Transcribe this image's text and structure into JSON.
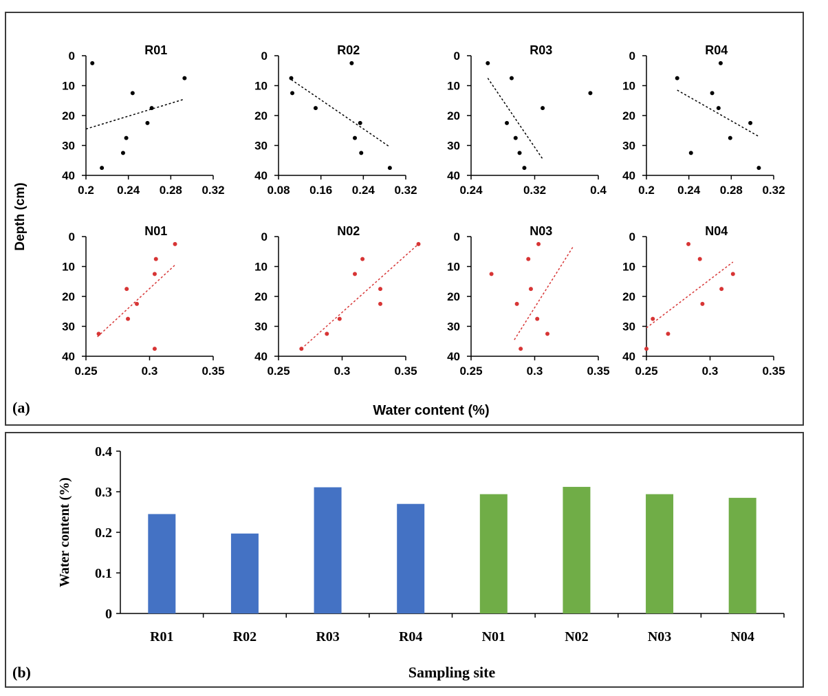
{
  "panel_a": {
    "label": "(a)",
    "ylabel": "Depth (cm)",
    "xlabel": "Water content (%)"
  },
  "panel_b": {
    "label": "(b)",
    "ylabel": "Water content (%)",
    "xlabel": "Sampling site"
  },
  "colors": {
    "r_points": "#000000",
    "n_points": "#d73535",
    "r_bar": "#4472c4",
    "n_bar": "#70ad47",
    "frame": "#3c3c3c"
  },
  "chart_data": [
    {
      "id": "R01",
      "type": "scatter",
      "title": "R01",
      "xlim": [
        0.2,
        0.32
      ],
      "xticks": [
        0.2,
        0.24,
        0.28,
        0.32
      ],
      "xtick_labels": [
        "0.2",
        "0.24",
        "0.28",
        "0.32"
      ],
      "ylim": [
        0,
        40
      ],
      "yticks": [
        0,
        10,
        20,
        30,
        40
      ],
      "y_inverted": true,
      "points": [
        [
          0.206,
          2.5
        ],
        [
          0.293,
          7.5
        ],
        [
          0.244,
          12.5
        ],
        [
          0.262,
          17.5
        ],
        [
          0.258,
          22.5
        ],
        [
          0.238,
          27.5
        ],
        [
          0.235,
          32.5
        ],
        [
          0.215,
          37.5
        ]
      ],
      "trend": [
        [
          0.2,
          24.5
        ],
        [
          0.293,
          14.5
        ]
      ],
      "color": "#000000"
    },
    {
      "id": "R02",
      "type": "scatter",
      "title": "R02",
      "xlim": [
        0.08,
        0.32
      ],
      "xticks": [
        0.08,
        0.16,
        0.24,
        0.32
      ],
      "xtick_labels": [
        "0.08",
        "0.16",
        "0.24",
        "0.32"
      ],
      "ylim": [
        0,
        40
      ],
      "yticks": [
        0,
        10,
        20,
        30,
        40
      ],
      "y_inverted": true,
      "points": [
        [
          0.218,
          2.5
        ],
        [
          0.104,
          7.5
        ],
        [
          0.106,
          12.5
        ],
        [
          0.15,
          17.5
        ],
        [
          0.234,
          22.5
        ],
        [
          0.224,
          27.5
        ],
        [
          0.236,
          32.5
        ],
        [
          0.29,
          37.5
        ]
      ],
      "trend": [
        [
          0.104,
          8.0
        ],
        [
          0.29,
          30.5
        ]
      ],
      "color": "#000000"
    },
    {
      "id": "R03",
      "type": "scatter",
      "title": "R03",
      "xlim": [
        0.24,
        0.4
      ],
      "xticks": [
        0.24,
        0.32,
        0.4
      ],
      "xtick_labels": [
        "0.24",
        "0.32",
        "0.4"
      ],
      "ylim": [
        0,
        40
      ],
      "yticks": [
        0,
        10,
        20,
        30,
        40
      ],
      "y_inverted": true,
      "points": [
        [
          0.261,
          2.5
        ],
        [
          0.291,
          7.5
        ],
        [
          0.39,
          12.5
        ],
        [
          0.33,
          17.5
        ],
        [
          0.285,
          22.5
        ],
        [
          0.296,
          27.5
        ],
        [
          0.301,
          32.5
        ],
        [
          0.307,
          37.5
        ]
      ],
      "trend": [
        [
          0.261,
          7.5
        ],
        [
          0.33,
          34.5
        ]
      ],
      "color": "#000000"
    },
    {
      "id": "R04",
      "type": "scatter",
      "title": "R04",
      "xlim": [
        0.2,
        0.32
      ],
      "xticks": [
        0.2,
        0.24,
        0.28,
        0.32
      ],
      "xtick_labels": [
        "0.2",
        "0.24",
        "0.28",
        "0.32"
      ],
      "ylim": [
        0,
        40
      ],
      "yticks": [
        0,
        10,
        20,
        30,
        40
      ],
      "y_inverted": true,
      "points": [
        [
          0.27,
          2.5
        ],
        [
          0.229,
          7.5
        ],
        [
          0.262,
          12.5
        ],
        [
          0.268,
          17.5
        ],
        [
          0.298,
          22.5
        ],
        [
          0.279,
          27.5
        ],
        [
          0.242,
          32.5
        ],
        [
          0.306,
          37.5
        ]
      ],
      "trend": [
        [
          0.229,
          11.5
        ],
        [
          0.306,
          27.0
        ]
      ],
      "color": "#000000"
    },
    {
      "id": "N01",
      "type": "scatter",
      "title": "N01",
      "xlim": [
        0.25,
        0.35
      ],
      "xticks": [
        0.25,
        0.3,
        0.35
      ],
      "xtick_labels": [
        "0.25",
        "0.3",
        "0.35"
      ],
      "ylim": [
        0,
        40
      ],
      "yticks": [
        0,
        10,
        20,
        30,
        40
      ],
      "y_inverted": true,
      "points": [
        [
          0.32,
          2.5
        ],
        [
          0.305,
          7.5
        ],
        [
          0.304,
          12.5
        ],
        [
          0.282,
          17.5
        ],
        [
          0.29,
          22.5
        ],
        [
          0.283,
          27.5
        ],
        [
          0.26,
          32.5
        ],
        [
          0.304,
          37.5
        ]
      ],
      "trend": [
        [
          0.259,
          33.5
        ],
        [
          0.32,
          9.5
        ]
      ],
      "color": "#d73535"
    },
    {
      "id": "N02",
      "type": "scatter",
      "title": "N02",
      "xlim": [
        0.25,
        0.35
      ],
      "xticks": [
        0.25,
        0.3,
        0.35
      ],
      "xtick_labels": [
        "0.25",
        "0.3",
        "0.35"
      ],
      "ylim": [
        0,
        40
      ],
      "yticks": [
        0,
        10,
        20,
        30,
        40
      ],
      "y_inverted": true,
      "points": [
        [
          0.36,
          2.5
        ],
        [
          0.316,
          7.5
        ],
        [
          0.31,
          12.5
        ],
        [
          0.33,
          17.5
        ],
        [
          0.33,
          22.5
        ],
        [
          0.298,
          27.5
        ],
        [
          0.288,
          32.5
        ],
        [
          0.268,
          37.5
        ]
      ],
      "trend": [
        [
          0.268,
          37.5
        ],
        [
          0.36,
          2.5
        ]
      ],
      "color": "#d73535"
    },
    {
      "id": "N03",
      "type": "scatter",
      "title": "N03",
      "xlim": [
        0.25,
        0.35
      ],
      "xticks": [
        0.25,
        0.3,
        0.35
      ],
      "xtick_labels": [
        "0.25",
        "0.3",
        "0.35"
      ],
      "ylim": [
        0,
        40
      ],
      "yticks": [
        0,
        10,
        20,
        30,
        40
      ],
      "y_inverted": true,
      "points": [
        [
          0.303,
          2.5
        ],
        [
          0.295,
          7.5
        ],
        [
          0.266,
          12.5
        ],
        [
          0.297,
          17.5
        ],
        [
          0.286,
          22.5
        ],
        [
          0.302,
          27.5
        ],
        [
          0.31,
          32.5
        ],
        [
          0.289,
          37.5
        ]
      ],
      "trend": [
        [
          0.284,
          34.5
        ],
        [
          0.33,
          3.5
        ]
      ],
      "color": "#d73535"
    },
    {
      "id": "N04",
      "type": "scatter",
      "title": "N04",
      "xlim": [
        0.25,
        0.35
      ],
      "xticks": [
        0.25,
        0.3,
        0.35
      ],
      "xtick_labels": [
        "0.25",
        "0.3",
        "0.35"
      ],
      "ylim": [
        0,
        40
      ],
      "yticks": [
        0,
        10,
        20,
        30,
        40
      ],
      "y_inverted": true,
      "points": [
        [
          0.283,
          2.5
        ],
        [
          0.292,
          7.5
        ],
        [
          0.318,
          12.5
        ],
        [
          0.309,
          17.5
        ],
        [
          0.294,
          22.5
        ],
        [
          0.255,
          27.5
        ],
        [
          0.267,
          32.5
        ],
        [
          0.25,
          37.5
        ]
      ],
      "trend": [
        [
          0.25,
          30.5
        ],
        [
          0.318,
          8.5
        ]
      ],
      "color": "#d73535"
    },
    {
      "id": "bars",
      "type": "bar",
      "title": "",
      "xlabel": "Sampling site",
      "ylabel": "Water content (%)",
      "categories": [
        "R01",
        "R02",
        "R03",
        "R04",
        "N01",
        "N02",
        "N03",
        "N04"
      ],
      "values": [
        0.245,
        0.197,
        0.311,
        0.27,
        0.294,
        0.312,
        0.294,
        0.285
      ],
      "colors": [
        "#4472c4",
        "#4472c4",
        "#4472c4",
        "#4472c4",
        "#70ad47",
        "#70ad47",
        "#70ad47",
        "#70ad47"
      ],
      "ylim": [
        0,
        0.4
      ],
      "yticks": [
        0,
        0.1,
        0.2,
        0.3,
        0.4
      ],
      "ytick_labels": [
        "0",
        "0.1",
        "0.2",
        "0.3",
        "0.4"
      ],
      "grid": false
    }
  ]
}
